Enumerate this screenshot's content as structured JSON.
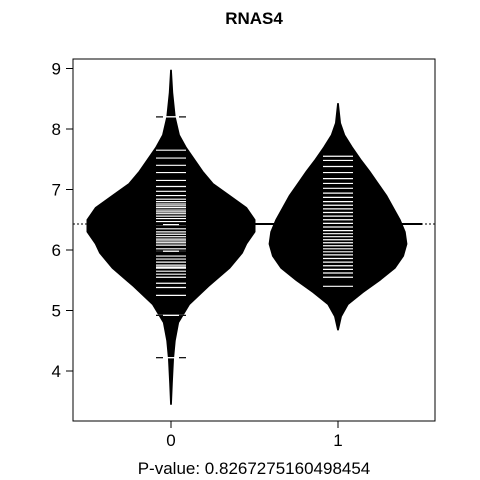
{
  "chart_data": {
    "type": "beanplot",
    "title": "RNAS4",
    "xlabel": "P-value: 0.8267275160498454",
    "ylabel": "",
    "x_categories": [
      "0",
      "1"
    ],
    "y_ticks": [
      4,
      5,
      6,
      7,
      8,
      9
    ],
    "ylim": [
      3.2,
      9.2
    ],
    "overall_mean_line": 6.43,
    "groups": [
      {
        "label": "0",
        "mean": 6.43,
        "min": 3.45,
        "max": 8.97,
        "density": [
          [
            3.45,
            0.005
          ],
          [
            3.8,
            0.015
          ],
          [
            4.2,
            0.03
          ],
          [
            4.5,
            0.05
          ],
          [
            4.8,
            0.09
          ],
          [
            5.1,
            0.22
          ],
          [
            5.4,
            0.45
          ],
          [
            5.7,
            0.7
          ],
          [
            5.95,
            0.85
          ],
          [
            6.1,
            0.9
          ],
          [
            6.3,
            1.0
          ],
          [
            6.5,
            1.0
          ],
          [
            6.7,
            0.9
          ],
          [
            6.9,
            0.7
          ],
          [
            7.1,
            0.5
          ],
          [
            7.3,
            0.38
          ],
          [
            7.5,
            0.28
          ],
          [
            7.7,
            0.18
          ],
          [
            7.9,
            0.1
          ],
          [
            8.2,
            0.05
          ],
          [
            8.6,
            0.02
          ],
          [
            8.97,
            0.005
          ]
        ],
        "observations": [
          4.22,
          4.92,
          5.25,
          5.38,
          5.45,
          5.55,
          5.6,
          5.65,
          5.7,
          5.72,
          5.75,
          5.8,
          5.85,
          5.9,
          5.98,
          6.02,
          6.08,
          6.12,
          6.15,
          6.18,
          6.22,
          6.26,
          6.3,
          6.35,
          6.42,
          6.47,
          6.52,
          6.56,
          6.6,
          6.63,
          6.66,
          6.7,
          6.73,
          6.76,
          6.8,
          6.84,
          6.9,
          6.97,
          7.05,
          7.15,
          7.28,
          7.4,
          7.52,
          7.65,
          8.2
        ],
        "highlight_observations": [
          4.22,
          4.92,
          5.98,
          6.42,
          8.2
        ]
      },
      {
        "label": "1",
        "mean": 6.43,
        "min": 4.68,
        "max": 8.42,
        "density": [
          [
            4.68,
            0.005
          ],
          [
            4.9,
            0.04
          ],
          [
            5.1,
            0.12
          ],
          [
            5.3,
            0.3
          ],
          [
            5.5,
            0.5
          ],
          [
            5.7,
            0.68
          ],
          [
            5.9,
            0.78
          ],
          [
            6.1,
            0.82
          ],
          [
            6.3,
            0.8
          ],
          [
            6.5,
            0.74
          ],
          [
            6.7,
            0.66
          ],
          [
            6.9,
            0.58
          ],
          [
            7.1,
            0.48
          ],
          [
            7.3,
            0.38
          ],
          [
            7.5,
            0.27
          ],
          [
            7.7,
            0.17
          ],
          [
            7.9,
            0.08
          ],
          [
            8.1,
            0.03
          ],
          [
            8.42,
            0.005
          ]
        ],
        "observations": [
          5.4,
          5.55,
          5.62,
          5.68,
          5.74,
          5.8,
          5.86,
          5.92,
          5.97,
          6.02,
          6.07,
          6.12,
          6.17,
          6.22,
          6.27,
          6.32,
          6.38,
          6.44,
          6.5,
          6.56,
          6.62,
          6.68,
          6.74,
          6.8,
          6.87,
          6.94,
          7.02,
          7.1,
          7.18,
          7.28,
          7.38,
          7.48,
          7.55
        ],
        "highlight_observations": []
      }
    ]
  }
}
